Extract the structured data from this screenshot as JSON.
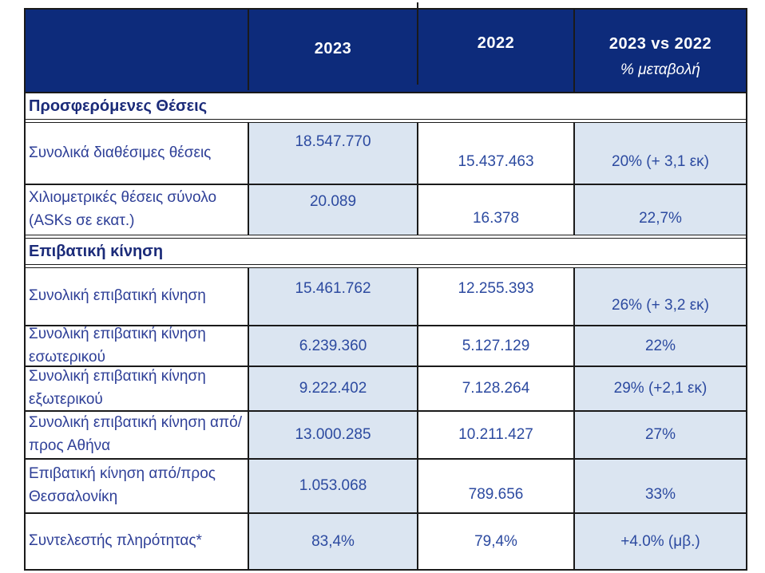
{
  "colors": {
    "header_bg": "#0d2b7b",
    "header_text": "#ffffff",
    "cell_blue_bg": "#dbe5f1",
    "cell_white_bg": "#ffffff",
    "border": "#1a1a1a",
    "label_text": "#2e3f97",
    "value_text": "#2c4aa0",
    "section_text": "#1b2b79"
  },
  "header": {
    "col_label": "",
    "col_2023": "2023",
    "col_2022": "2022",
    "col_change_line1": "2023 vs 2022",
    "col_change_line2": "% μεταβολή"
  },
  "sections": {
    "seats": {
      "title": "Προσφερόμενες Θέσεις"
    },
    "traffic": {
      "title": "Επιβατική κίνηση"
    }
  },
  "rows": [
    {
      "label": "Συνολικά διαθέσιμες θέσεις",
      "y2023": "18.547.770",
      "y2022": "15.437.463",
      "change": "20% (+ 3,1 εκ)"
    },
    {
      "label": "Χιλιομετρικές θέσεις σύνολο (ASKs σε εκατ.)",
      "y2023": "20.089",
      "y2022": "16.378",
      "change": "22,7%"
    },
    {
      "label": "Συνολική επιβατική κίνηση",
      "y2023": "15.461.762",
      "y2022": "12.255.393",
      "change": "26% (+ 3,2 εκ)"
    },
    {
      "label": "Συνολική επιβατική κίνηση εσωτερικού",
      "y2023": "6.239.360",
      "y2022": "5.127.129",
      "change": "22%"
    },
    {
      "label": "Συνολική επιβατική κίνηση εξωτερικού",
      "y2023": "9.222.402",
      "y2022": "7.128.264",
      "change": "29% (+2,1 εκ)"
    },
    {
      "label": "Συνολική επιβατική κίνηση από/προς Αθήνα",
      "y2023": "13.000.285",
      "y2022": "10.211.427",
      "change": "27%"
    },
    {
      "label": "Επιβατική κίνηση  από/προς Θεσσαλονίκη",
      "y2023": "1.053.068",
      "y2022": "789.656",
      "change": "33%"
    },
    {
      "label": "Συντελεστής πληρότητας*",
      "y2023": "83,4%",
      "y2022": "79,4%",
      "change": "+4.0% (μβ.)"
    }
  ]
}
